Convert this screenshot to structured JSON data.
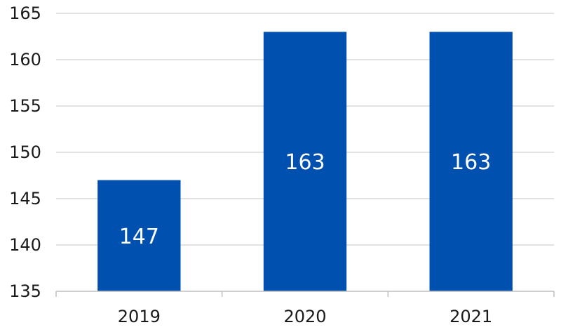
{
  "chart_data": {
    "type": "bar",
    "categories": [
      "2019",
      "2020",
      "2021"
    ],
    "values": [
      147,
      163,
      163
    ],
    "data_labels": [
      "147",
      "163",
      "163"
    ],
    "title": "",
    "xlabel": "",
    "ylabel": "",
    "ylim": [
      135,
      165
    ],
    "yticks": [
      "135",
      "140",
      "145",
      "150",
      "155",
      "160",
      "165"
    ],
    "ytick_values": [
      135,
      140,
      145,
      150,
      155,
      160,
      165
    ],
    "grid": true,
    "legend": "none",
    "bar_color": "#0050B0"
  }
}
